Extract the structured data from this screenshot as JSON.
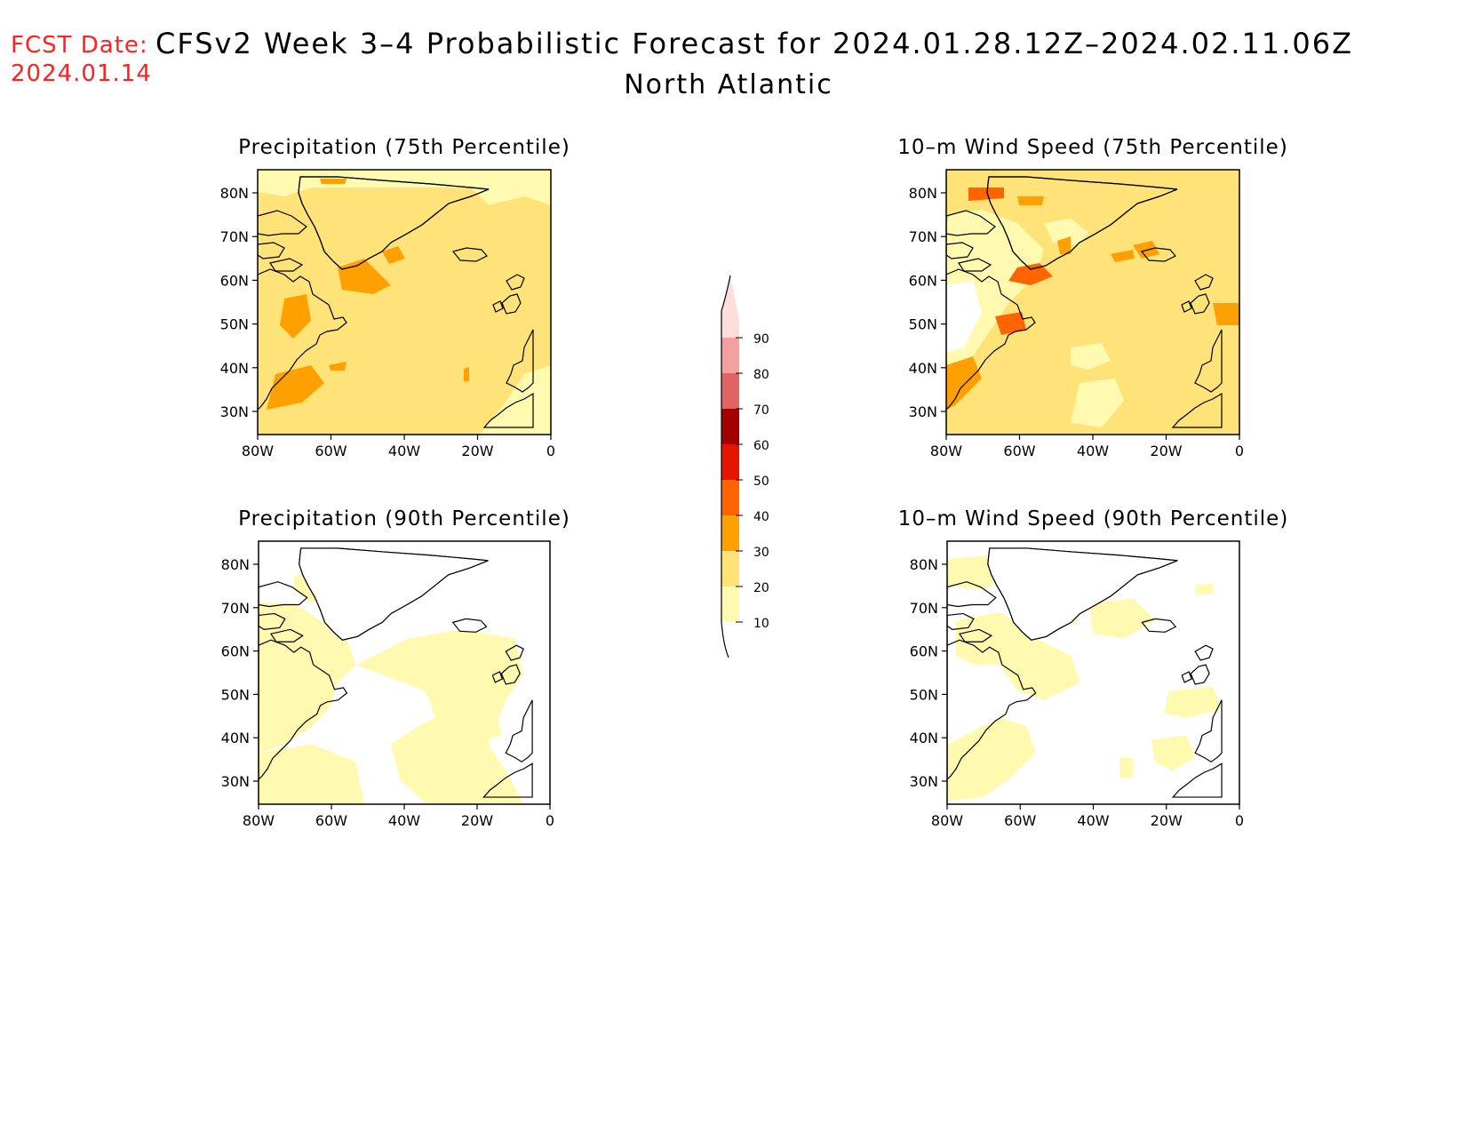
{
  "header": {
    "fcst_label": "FCST Date:",
    "fcst_date": "2024.01.14",
    "title": "CFSv2 Week 3–4 Probabilistic Forecast for 2024.01.28.12Z–2024.02.11.06Z",
    "subtitle": "North Atlantic"
  },
  "panels": [
    {
      "title": "Precipitation (75th Percentile)"
    },
    {
      "title": "10–m Wind Speed (75th Percentile)"
    },
    {
      "title": "Precipitation (90th Percentile)"
    },
    {
      "title": "10–m Wind Speed (90th Percentile)"
    }
  ],
  "axes": {
    "lat_labels": [
      "80N",
      "70N",
      "60N",
      "50N",
      "40N",
      "30N"
    ],
    "lon_labels": [
      "80W",
      "60W",
      "40W",
      "20W",
      "0"
    ]
  },
  "colorbar": {
    "levels": [
      "10",
      "20",
      "30",
      "40",
      "50",
      "60",
      "70",
      "80",
      "90"
    ],
    "colors": [
      "#fffaaf",
      "#ffe278",
      "#ffa000",
      "#ff6400",
      "#e61400",
      "#a50000",
      "#e06464",
      "#f5a0a0",
      "#ffdddd"
    ]
  }
}
